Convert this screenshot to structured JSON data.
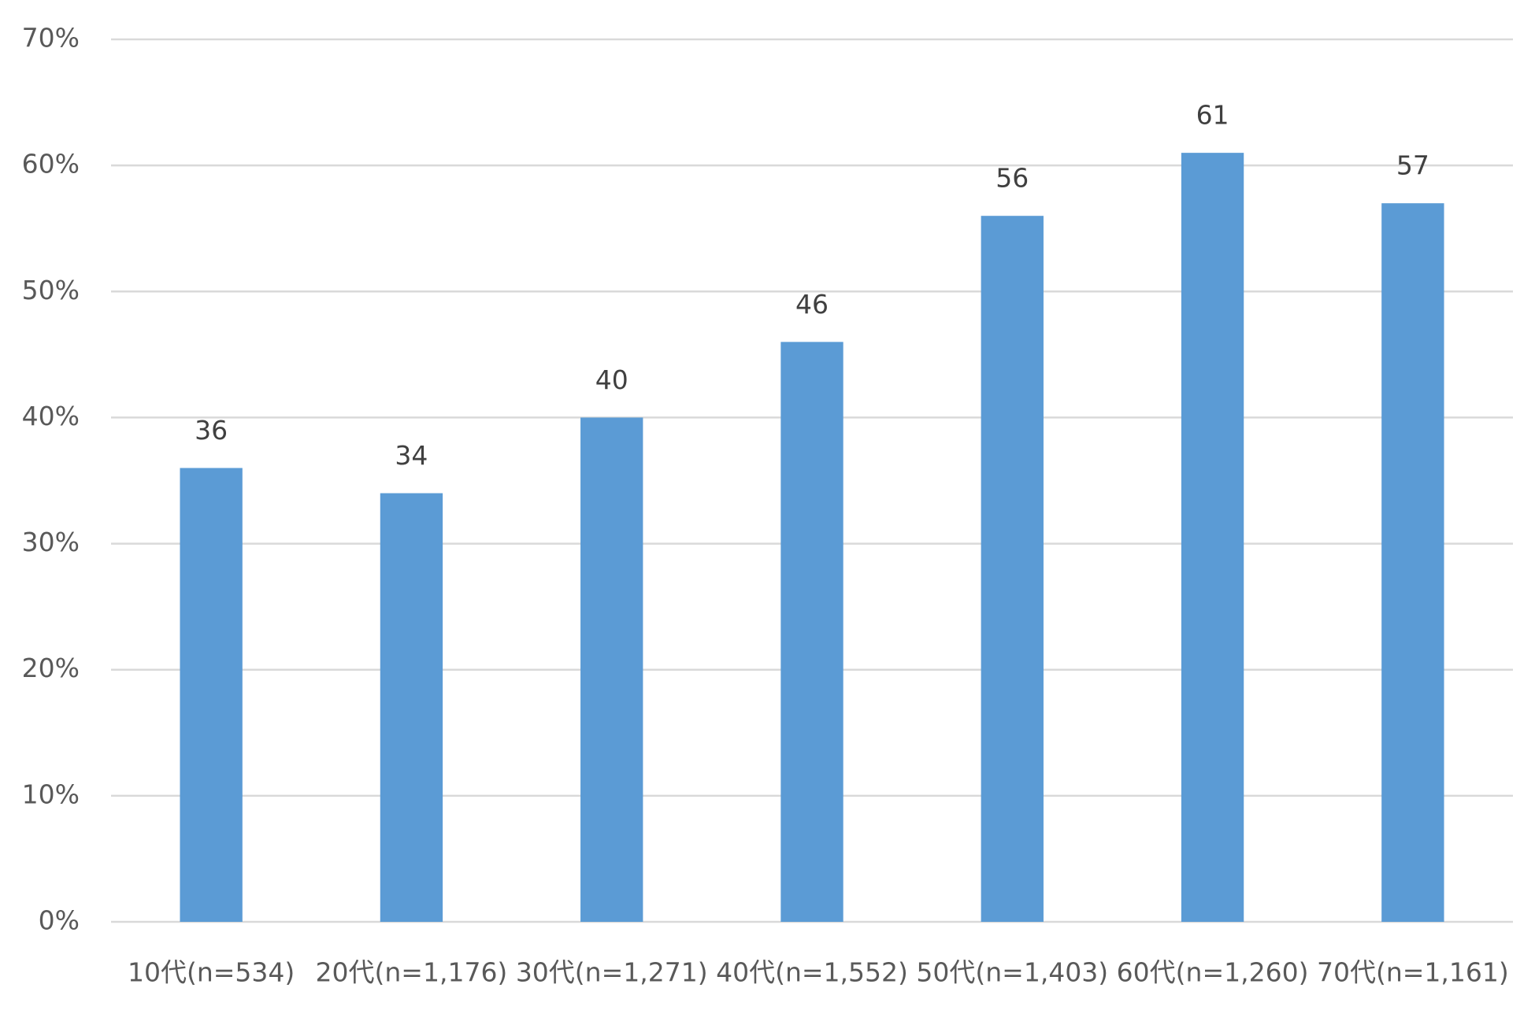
{
  "chart_data": {
    "type": "bar",
    "categories": [
      "10代(n=534)",
      "20代(n=1,176)",
      "30代(n=1,271)",
      "40代(n=1,552)",
      "50代(n=1,403)",
      "60代(n=1,260)",
      "70代(n=1,161)"
    ],
    "values": [
      36,
      34,
      40,
      46,
      56,
      61,
      57
    ],
    "color": "#5b9bd5",
    "ylim": [
      0,
      70
    ],
    "yticks": [
      {
        "value": 0,
        "label": "0%"
      },
      {
        "value": 10,
        "label": "10%"
      },
      {
        "value": 20,
        "label": "20%"
      },
      {
        "value": 30,
        "label": "30%"
      },
      {
        "value": 40,
        "label": "40%"
      },
      {
        "value": 50,
        "label": "50%"
      },
      {
        "value": 60,
        "label": "60%"
      },
      {
        "value": 70,
        "label": "70%"
      }
    ],
    "grid": true
  }
}
